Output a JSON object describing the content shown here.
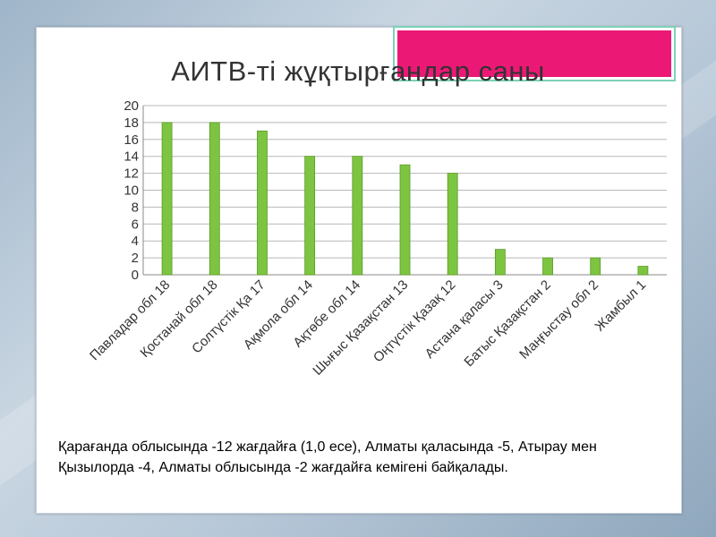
{
  "chart_data": {
    "type": "bar",
    "title": "АИТВ-ті  жұқтырғандар саны",
    "categories": [
      "Павладар обл 18",
      "Қостанай обл 18",
      "Солтүстік Қа 17",
      "Ақмола обл 14",
      "Ақтөбе обл 14",
      "Шығыс Қазақстан 13",
      "Оңтүстік Қазақ 12",
      "Астана қаласы 3",
      "Батыс Қазақстан  2",
      "Маңғыстау обл 2",
      "Жамбыл 1"
    ],
    "values": [
      18,
      18,
      17,
      14,
      14,
      13,
      12,
      3,
      2,
      2,
      1
    ],
    "ylim": [
      0,
      20
    ],
    "yticks": [
      "0",
      "2",
      "4",
      "6",
      "8",
      "10",
      "12",
      "14",
      "16",
      "18",
      "20"
    ],
    "grid": true,
    "bar_color": "#7dc540"
  },
  "caption": "Қарағанда облысында -12 жағдайға (1,0 есе), Алматы қаласында -5, Атырау мен Қызылорда -4, Алматы облысында -2 жағдайға кемігені байқалады.",
  "colors": {
    "accent": "#ec1876",
    "accent_border": "#7dd1b8"
  }
}
